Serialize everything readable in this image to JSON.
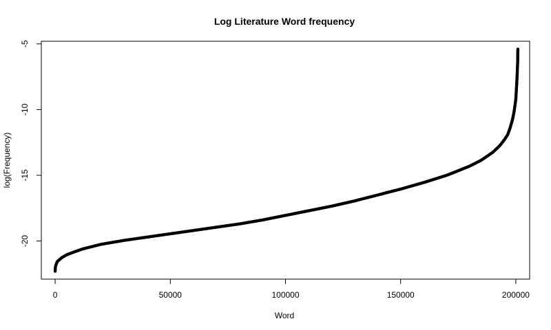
{
  "chart_data": {
    "type": "scatter",
    "title": "Log Literature Word frequency",
    "xlabel": "Word",
    "ylabel": "log(Frequency)",
    "xlim": [
      -6000,
      206000
    ],
    "ylim": [
      -22.9,
      -4.8
    ],
    "x_ticks": [
      0,
      50000,
      100000,
      150000,
      200000
    ],
    "x_tick_labels": [
      "0",
      "50000",
      "100000",
      "150000",
      "200000"
    ],
    "y_ticks": [
      -20,
      -15,
      -10,
      -5
    ],
    "y_tick_labels": [
      "-20",
      "-15",
      "-10",
      "-5"
    ],
    "grid": false,
    "legend": "none",
    "point_color": "#000000",
    "series": [
      {
        "x": [
          0,
          100,
          300,
          600,
          1000,
          2000,
          3000,
          5000,
          8000,
          12000,
          20000,
          30000,
          40000,
          50000,
          60000,
          70000,
          80000,
          90000,
          100000,
          110000,
          120000,
          130000,
          140000,
          150000,
          160000,
          170000,
          180000,
          185000,
          190000,
          193000,
          195000,
          196500,
          197500,
          198500,
          199200,
          199700,
          200000,
          200200,
          200400,
          200500,
          200600,
          200650,
          200700,
          200750,
          200800,
          200850,
          200900
        ],
        "y": [
          -22.3,
          -22.0,
          -21.85,
          -21.7,
          -21.55,
          -21.4,
          -21.25,
          -21.05,
          -20.85,
          -20.6,
          -20.25,
          -19.95,
          -19.7,
          -19.45,
          -19.2,
          -18.95,
          -18.7,
          -18.4,
          -18.05,
          -17.7,
          -17.35,
          -16.95,
          -16.5,
          -16.05,
          -15.55,
          -15.0,
          -14.3,
          -13.85,
          -13.25,
          -12.75,
          -12.3,
          -11.9,
          -11.4,
          -10.8,
          -10.2,
          -9.6,
          -9.2,
          -8.6,
          -8.0,
          -7.6,
          -7.3,
          -7.0,
          -6.8,
          -6.6,
          -6.4,
          -5.7,
          -5.4
        ]
      }
    ]
  }
}
